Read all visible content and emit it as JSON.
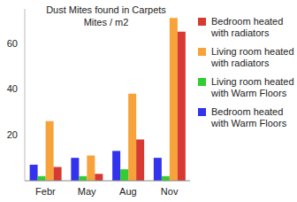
{
  "chart_data": {
    "type": "bar",
    "title": "Dust Mites found in Carpets",
    "subtitle": "Mites / m2",
    "categories": [
      "Febr",
      "May",
      "Aug",
      "Nov"
    ],
    "series": [
      {
        "name": "Bedroom heated with Warm Floors",
        "color": "#3333ee",
        "values": [
          7,
          10,
          13,
          10
        ]
      },
      {
        "name": "Living room heated with Warm Floors",
        "color": "#33cc33",
        "values": [
          2,
          2,
          5,
          2
        ]
      },
      {
        "name": "Living room heated with radiators",
        "color": "#f7a23a",
        "values": [
          26,
          11,
          38,
          71
        ]
      },
      {
        "name": "Bedroom heated with radiators",
        "color": "#d63a33",
        "values": [
          6,
          3,
          18,
          65
        ]
      }
    ],
    "ylim": [
      0,
      75
    ],
    "yticks": [
      20,
      40,
      60
    ],
    "grid": false,
    "legend": "right"
  }
}
